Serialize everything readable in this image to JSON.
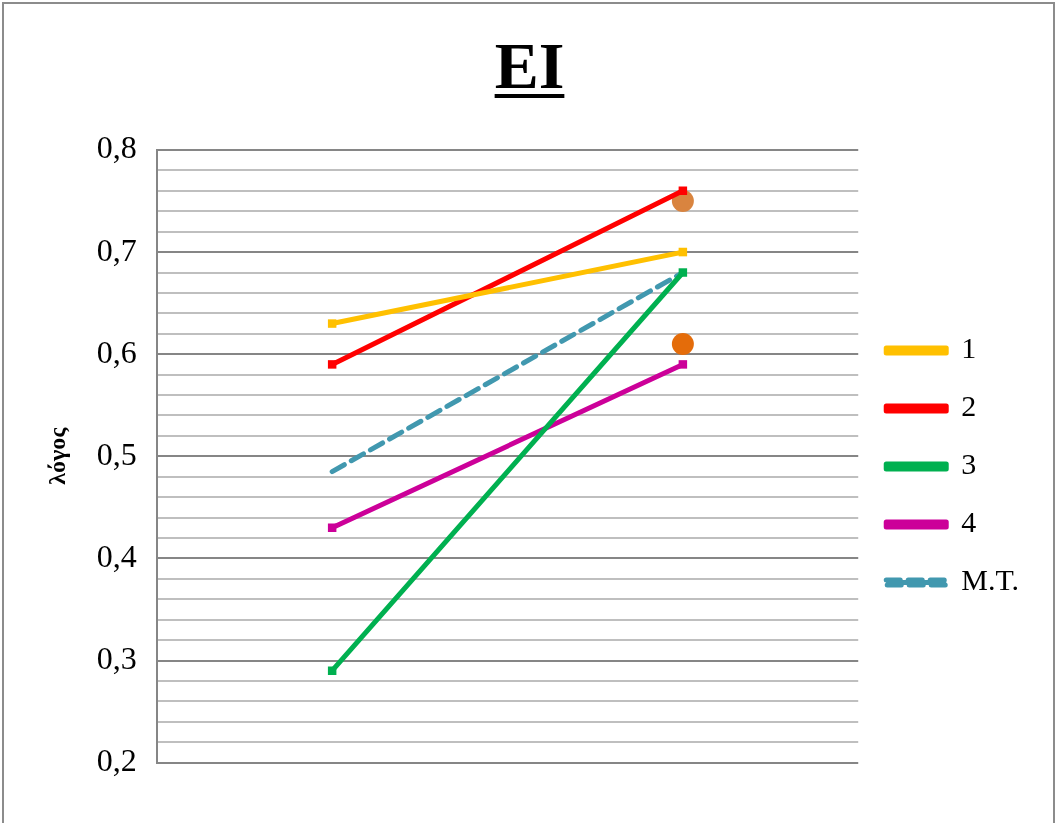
{
  "chart_data": {
    "type": "line",
    "title": "EI",
    "ylabel": "λόγος",
    "categories": [
      null,
      null
    ],
    "series": [
      {
        "name": "1",
        "color": "#ffc000",
        "values": [
          0.63,
          0.7
        ],
        "marker": "square",
        "line_style": "solid"
      },
      {
        "name": "2",
        "color": "#ff0000",
        "values": [
          0.59,
          0.76
        ],
        "marker": "square",
        "line_style": "solid"
      },
      {
        "name": "3",
        "color": "#00b050",
        "values": [
          0.29,
          0.68
        ],
        "marker": "square",
        "line_style": "solid"
      },
      {
        "name": "4",
        "color": "#cc0099",
        "values": [
          0.43,
          0.59
        ],
        "marker": "square",
        "line_style": "solid"
      },
      {
        "name": "M.T.",
        "color": "#4198af",
        "values": [
          0.485,
          0.68
        ],
        "marker": "none",
        "line_style": "dashed"
      },
      {
        "type": "scatter",
        "color": "#d9843f",
        "values": [
          null,
          0.75
        ],
        "marker": "circle"
      },
      {
        "type": "scatter",
        "color": "#e46c0a",
        "values": [
          null,
          0.61
        ],
        "marker": "circle"
      }
    ],
    "ylim": [
      0.2,
      0.8
    ],
    "yticks": [
      {
        "value": 0.2,
        "label": "0,2"
      },
      {
        "value": 0.22,
        "label": null
      },
      {
        "value": 0.24,
        "label": null
      },
      {
        "value": 0.26,
        "label": null
      },
      {
        "value": 0.28,
        "label": null
      },
      {
        "value": 0.3,
        "label": "0,3"
      },
      {
        "value": 0.32,
        "label": null
      },
      {
        "value": 0.34,
        "label": null
      },
      {
        "value": 0.36,
        "label": null
      },
      {
        "value": 0.38,
        "label": null
      },
      {
        "value": 0.4,
        "label": "0,4"
      },
      {
        "value": 0.42,
        "label": null
      },
      {
        "value": 0.44,
        "label": null
      },
      {
        "value": 0.46,
        "label": null
      },
      {
        "value": 0.48,
        "label": null
      },
      {
        "value": 0.5,
        "label": "0,5"
      },
      {
        "value": 0.52,
        "label": null
      },
      {
        "value": 0.54,
        "label": null
      },
      {
        "value": 0.56,
        "label": null
      },
      {
        "value": 0.58,
        "label": null
      },
      {
        "value": 0.6,
        "label": "0,6"
      },
      {
        "value": 0.62,
        "label": null
      },
      {
        "value": 0.64,
        "label": null
      },
      {
        "value": 0.66,
        "label": null
      },
      {
        "value": 0.68,
        "label": null
      },
      {
        "value": 0.7,
        "label": "0,7"
      },
      {
        "value": 0.72,
        "label": null
      },
      {
        "value": 0.74,
        "label": null
      },
      {
        "value": 0.76,
        "label": null
      },
      {
        "value": 0.78,
        "label": null
      },
      {
        "value": 0.8,
        "label": "0,8"
      }
    ],
    "grid": "y",
    "legend": "right"
  }
}
